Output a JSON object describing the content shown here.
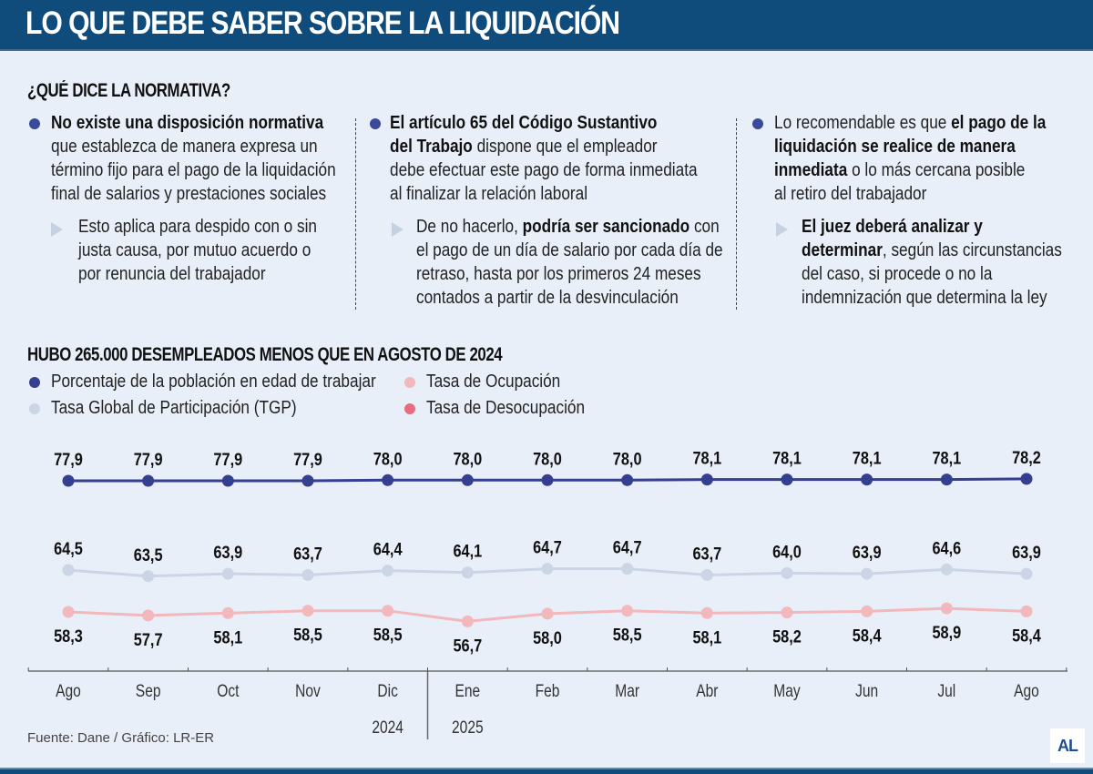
{
  "header": {
    "title": "LO QUE DEBE SABER SOBRE LA LIQUIDACIÓN"
  },
  "normativa": {
    "title": "¿QUÉ DICE LA NORMATIVA?",
    "columns": [
      {
        "main_lines": [
          [
            {
              "t": "No existe una disposición normativa",
              "b": true
            }
          ],
          [
            {
              "t": "que establezca de manera expresa un",
              "b": false
            }
          ],
          [
            {
              "t": "término fijo para el pago de la liquidación",
              "b": false
            }
          ],
          [
            {
              "t": "final de salarios y prestaciones sociales",
              "b": false
            }
          ]
        ],
        "sub_lines": [
          [
            {
              "t": "Esto aplica para despido con o sin",
              "b": false
            }
          ],
          [
            {
              "t": "justa causa, por mutuo acuerdo o",
              "b": false
            }
          ],
          [
            {
              "t": "por renuncia del trabajador",
              "b": false
            }
          ]
        ]
      },
      {
        "main_lines": [
          [
            {
              "t": "El artículo 65 del Código Sustantivo",
              "b": true
            }
          ],
          [
            {
              "t": "del Trabajo",
              "b": true
            },
            {
              "t": " dispone que el empleador",
              "b": false
            }
          ],
          [
            {
              "t": "debe efectuar este pago de forma inmediata",
              "b": false
            }
          ],
          [
            {
              "t": "al finalizar la relación laboral",
              "b": false
            }
          ]
        ],
        "sub_lines": [
          [
            {
              "t": "De no hacerlo, ",
              "b": false
            },
            {
              "t": "podría ser sancionado",
              "b": true
            },
            {
              "t": " con",
              "b": false
            }
          ],
          [
            {
              "t": "el pago de un día de salario por cada día de",
              "b": false
            }
          ],
          [
            {
              "t": "retraso, hasta por los primeros 24 meses",
              "b": false
            }
          ],
          [
            {
              "t": "contados a partir de la desvinculación",
              "b": false
            }
          ]
        ]
      },
      {
        "main_lines": [
          [
            {
              "t": "Lo recomendable es que ",
              "b": false
            },
            {
              "t": "el pago de la",
              "b": true
            }
          ],
          [
            {
              "t": "liquidación se realice de manera",
              "b": true
            }
          ],
          [
            {
              "t": "inmediata",
              "b": true
            },
            {
              "t": " o lo más cercana posible",
              "b": false
            }
          ],
          [
            {
              "t": "al retiro del trabajador",
              "b": false
            }
          ]
        ],
        "sub_lines": [
          [
            {
              "t": "El juez deberá analizar y",
              "b": true
            }
          ],
          [
            {
              "t": "determinar",
              "b": true
            },
            {
              "t": ", según las circunstancias",
              "b": false
            }
          ],
          [
            {
              "t": "del caso, si procede o no la",
              "b": false
            }
          ],
          [
            {
              "t": "indemnización que determina la ley",
              "b": false
            }
          ]
        ]
      }
    ]
  },
  "chart_data": {
    "type": "line",
    "title": "HUBO 265.000 DESEMPLEADOS MENOS QUE EN AGOSTO DE 2024",
    "xlabel": "",
    "ylabel": "",
    "categories": [
      "Ago",
      "Sep",
      "Oct",
      "Nov",
      "Dic",
      "Ene",
      "Feb",
      "Mar",
      "Abr",
      "May",
      "Jun",
      "Jul",
      "Ago"
    ],
    "year_labels": [
      {
        "label": "2024",
        "after_index": 4
      },
      {
        "label": "2025",
        "at_index": 5
      }
    ],
    "grid": false,
    "legend_position": "top-left",
    "legend": [
      {
        "name": "Porcentaje de la población en edad de trabajar",
        "color": "#363f8f"
      },
      {
        "name": "Tasa de Ocupación",
        "color": "#f2b8bc"
      },
      {
        "name": "Tasa Global de Participación (TGP)",
        "color": "#ccd5e6"
      },
      {
        "name": "Tasa de Desocupación",
        "color": "#e86c7e"
      }
    ],
    "series": [
      {
        "name": "Porcentaje de la población en edad de trabajar",
        "color": "#363f8f",
        "label_pos": "above",
        "values": [
          77.9,
          77.9,
          77.9,
          77.9,
          78.0,
          78.0,
          78.0,
          78.0,
          78.1,
          78.1,
          78.1,
          78.1,
          78.2
        ],
        "labels": [
          "77,9",
          "77,9",
          "77,9",
          "77,9",
          "78,0",
          "78,0",
          "78,0",
          "78,0",
          "78,1",
          "78,1",
          "78,1",
          "78,1",
          "78,2"
        ]
      },
      {
        "name": "Tasa Global de Participación (TGP)",
        "color": "#ccd5e6",
        "label_pos": "above",
        "values": [
          64.5,
          63.5,
          63.9,
          63.7,
          64.4,
          64.1,
          64.7,
          64.7,
          63.7,
          64.0,
          63.9,
          64.6,
          63.9
        ],
        "labels": [
          "64,5",
          "63,5",
          "63,9",
          "63,7",
          "64,4",
          "64,1",
          "64,7",
          "64,7",
          "63,7",
          "64,0",
          "63,9",
          "64,6",
          "63,9"
        ]
      },
      {
        "name": "Tasa de Ocupación",
        "color": "#f2b8bc",
        "label_pos": "below",
        "values": [
          58.3,
          57.7,
          58.1,
          58.5,
          58.5,
          56.7,
          58.0,
          58.5,
          58.1,
          58.2,
          58.4,
          58.9,
          58.4
        ],
        "labels": [
          "58,3",
          "57,7",
          "58,1",
          "58,5",
          "58,5",
          "56,7",
          "58,0",
          "58,5",
          "58,1",
          "58,2",
          "58,4",
          "58,9",
          "58,4"
        ]
      }
    ]
  },
  "footer": {
    "source": "Fuente: Dane / Gráfico: LR-ER",
    "logo": "AL"
  }
}
